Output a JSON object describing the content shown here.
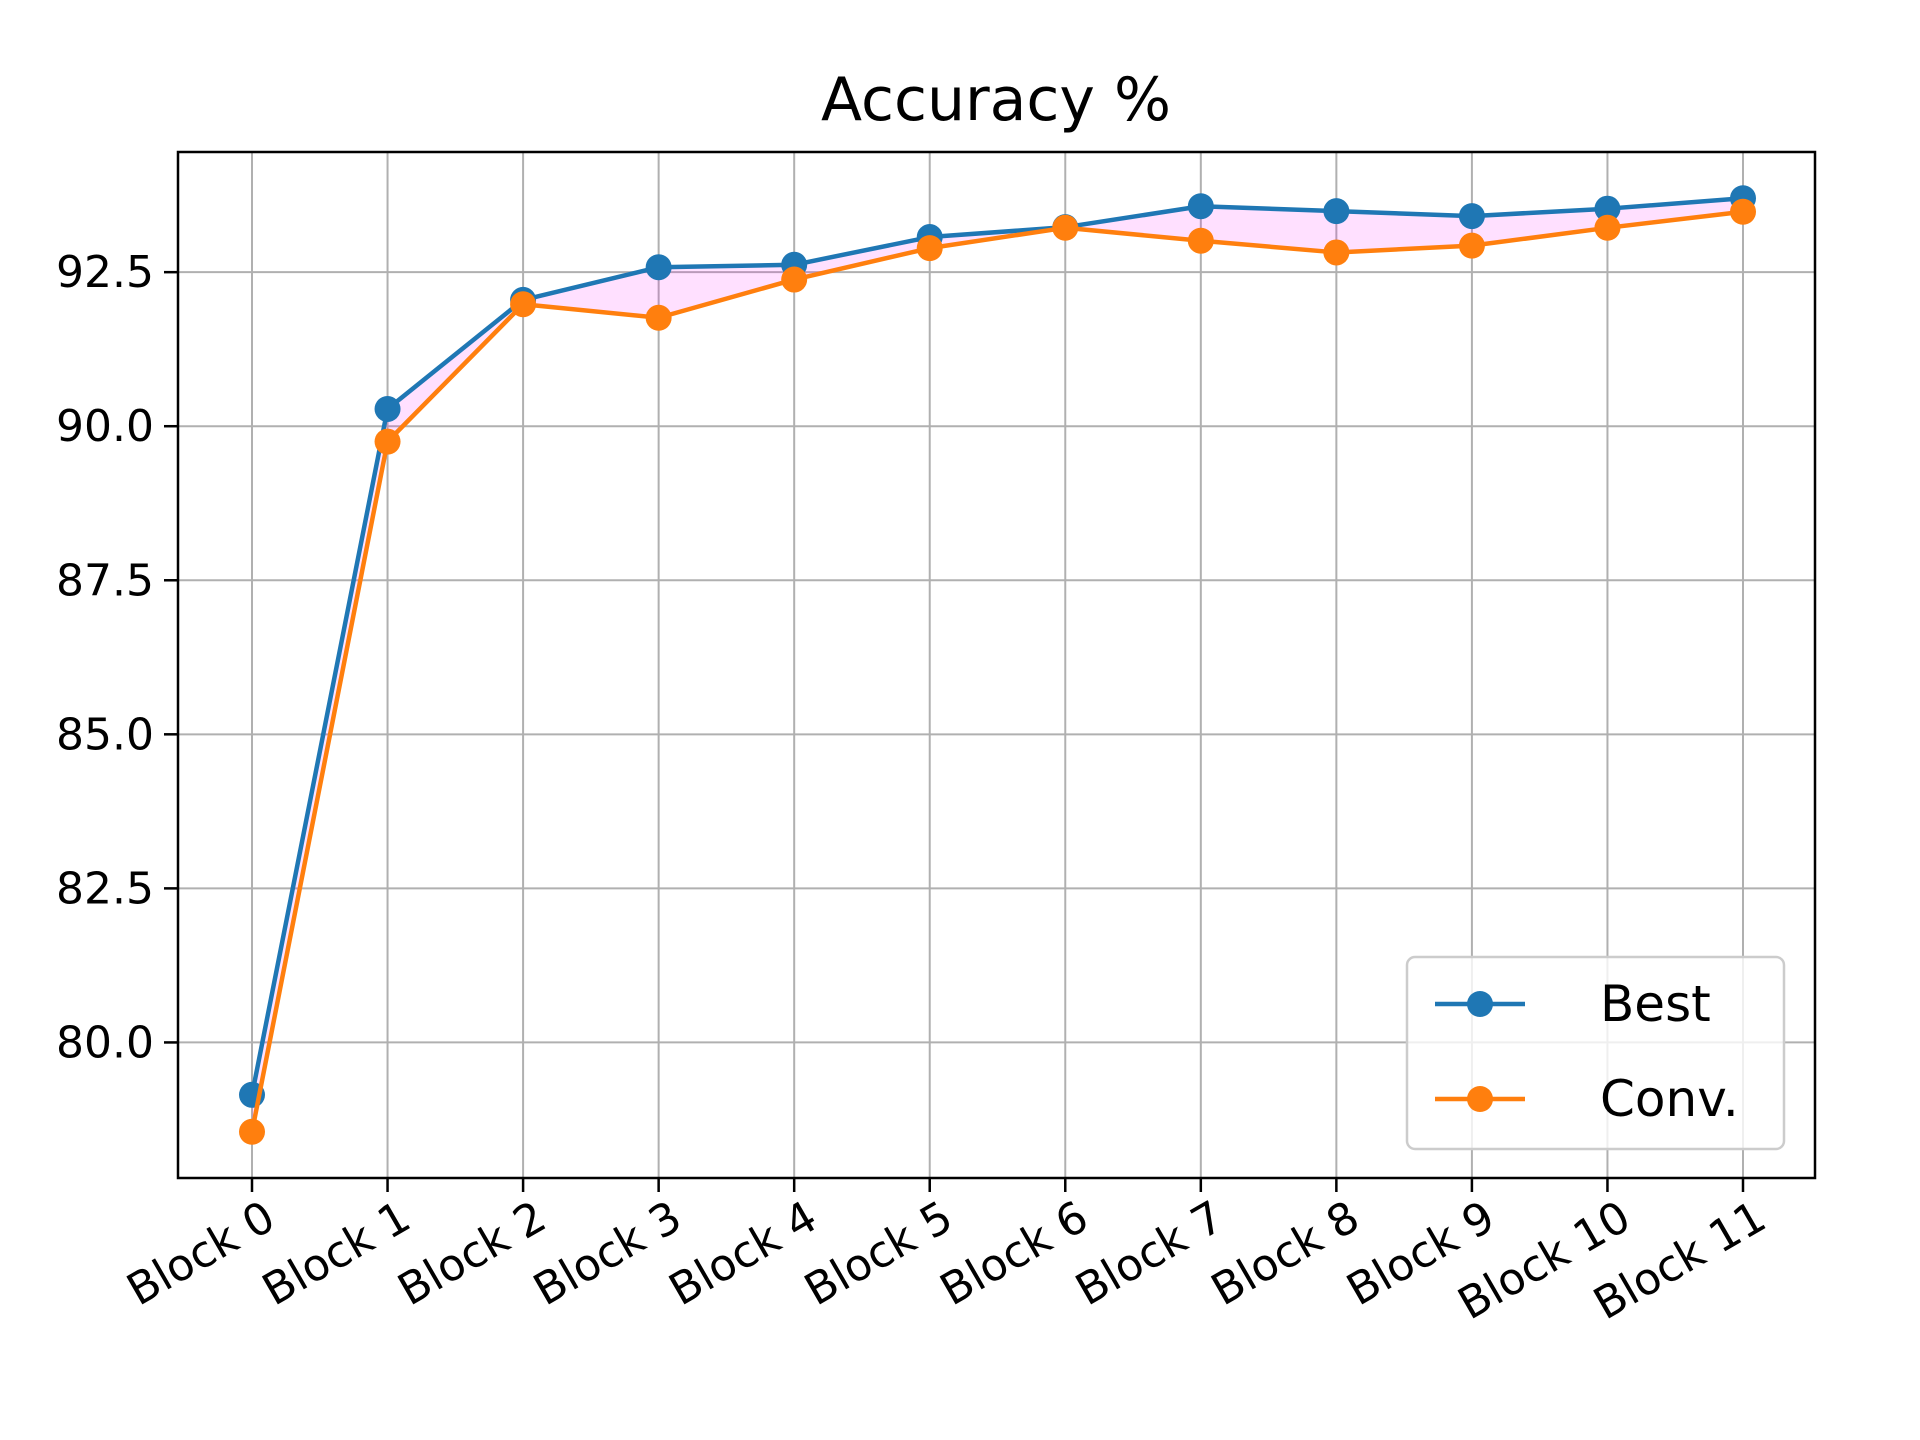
{
  "chart_data": {
    "type": "line",
    "title": "Accuracy %",
    "xlabel": "",
    "ylabel": "",
    "categories": [
      "Block 0",
      "Block 1",
      "Block 2",
      "Block 3",
      "Block 4",
      "Block 5",
      "Block 6",
      "Block 7",
      "Block 8",
      "Block 9",
      "Block 10",
      "Block 11"
    ],
    "series": [
      {
        "name": "Best",
        "color": "#1f77b4",
        "values": [
          79.15,
          90.28,
          92.05,
          92.58,
          92.62,
          93.07,
          93.23,
          93.57,
          93.49,
          93.41,
          93.53,
          93.7
        ]
      },
      {
        "name": "Conv.",
        "color": "#ff7f0e",
        "values": [
          78.55,
          89.75,
          91.98,
          91.76,
          92.38,
          92.89,
          93.22,
          93.01,
          92.82,
          92.93,
          93.22,
          93.48
        ]
      }
    ],
    "fill_between": {
      "color": "#ff00ff"
    },
    "ylim": [
      77.8,
      94.45
    ],
    "yticks": [
      "80.0",
      "82.5",
      "85.0",
      "87.5",
      "90.0",
      "92.5"
    ],
    "ytick_values": [
      80.0,
      82.5,
      85.0,
      87.5,
      90.0,
      92.5
    ],
    "grid": true,
    "legend_position": "lower-right"
  }
}
